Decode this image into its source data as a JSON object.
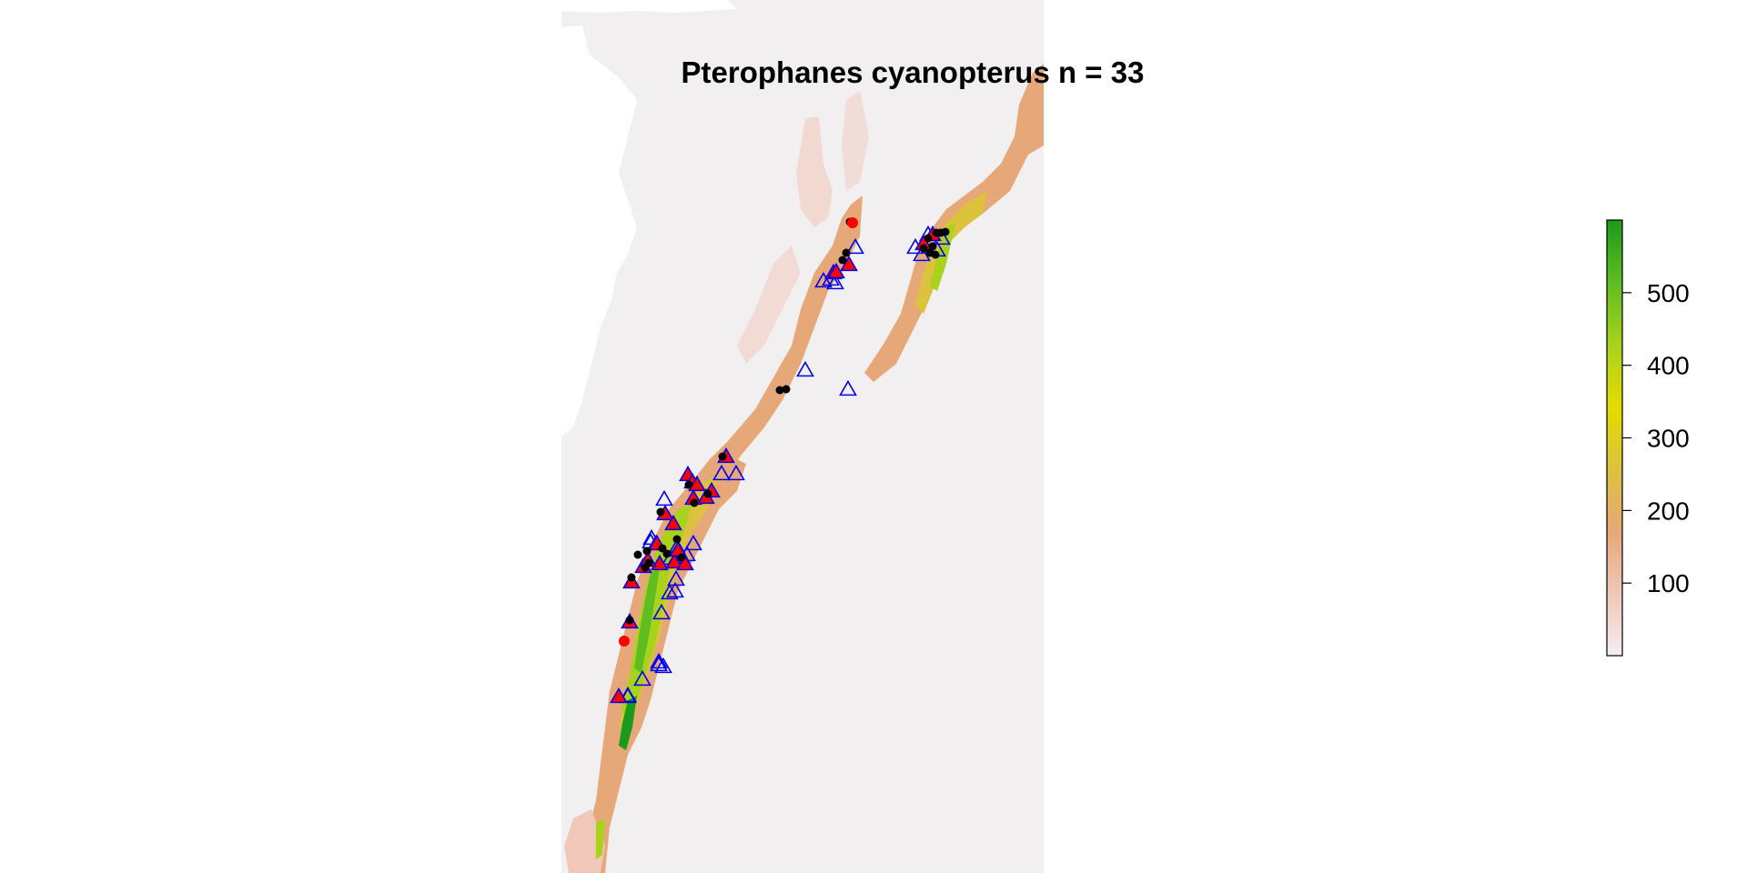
{
  "map": {
    "title": "Pterophanes cyanopterus n = 33"
  },
  "colors": {
    "background_cell": "#f2eff1",
    "ramp": [
      "#f3eef1",
      "#f0c7b8",
      "#e6a878",
      "#dcc23d",
      "#e5dc00",
      "#a9d21d",
      "#5fbd21",
      "#1b9a1b"
    ],
    "open_triangle": "#0000ee",
    "red_point": "#ff0000",
    "black_point": "#000000"
  },
  "legend": {
    "ticks": [
      {
        "label": "100",
        "value": 100
      },
      {
        "label": "200",
        "value": 200
      },
      {
        "label": "300",
        "value": 300
      },
      {
        "label": "400",
        "value": 400
      },
      {
        "label": "500",
        "value": 500
      }
    ],
    "min": 0,
    "max": 600
  },
  "markers": {
    "filled_triangle_icon": "red-triangle-blue-outline",
    "open_triangle_icon": "blue-triangle-outline",
    "red_dot_icon": "red-circle",
    "black_dot_icon": "black-circle"
  }
}
